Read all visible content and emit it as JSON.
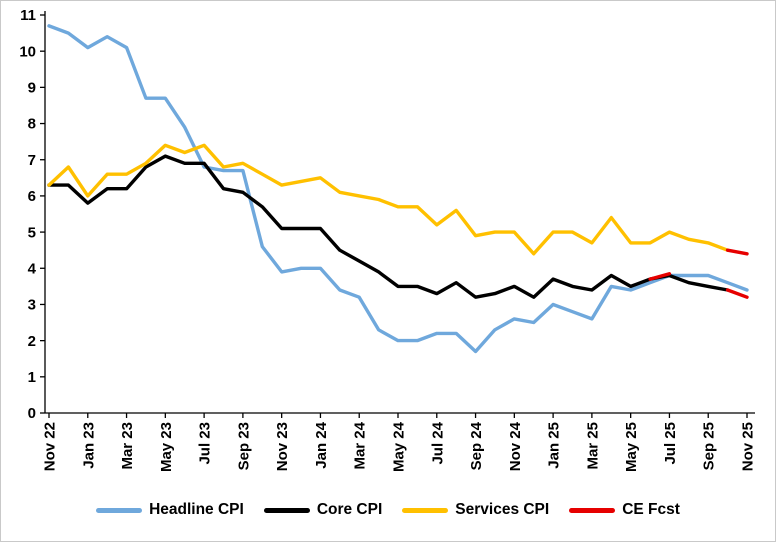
{
  "chart_data": {
    "type": "line",
    "title": "",
    "xlabel": "",
    "ylabel": "",
    "ylim": [
      0,
      11
    ],
    "grid": false,
    "legend_position": "bottom",
    "y_ticks": [
      0,
      1,
      2,
      3,
      4,
      5,
      6,
      7,
      8,
      9,
      10,
      11
    ],
    "x_tick_step": 2,
    "x_tick_labels": [
      "Nov 22",
      "Jan 23",
      "Mar 23",
      "May 23",
      "Jul 23",
      "Sep 23",
      "Nov 23",
      "Jan 24",
      "Mar 24",
      "May 24",
      "Jul 24",
      "Sep 24",
      "Nov 24",
      "Jan 25",
      "Mar 25",
      "May 25",
      "Jul 25",
      "Sep 25",
      "Nov 25"
    ],
    "x_months_monthly": [
      "Nov 22",
      "Dec 22",
      "Jan 23",
      "Feb 23",
      "Mar 23",
      "Apr 23",
      "May 23",
      "Jun 23",
      "Jul 23",
      "Aug 23",
      "Sep 23",
      "Oct 23",
      "Nov 23",
      "Dec 23",
      "Jan 24",
      "Feb 24",
      "Mar 24",
      "Apr 24",
      "May 24",
      "Jun 24",
      "Jul 24",
      "Aug 24",
      "Sep 24",
      "Oct 24",
      "Nov 24",
      "Dec 24",
      "Jan 25",
      "Feb 25",
      "Mar 25",
      "Apr 25",
      "May 25",
      "Jun 25",
      "Jul 25",
      "Aug 25",
      "Sep 25",
      "Oct 25",
      "Nov 25"
    ],
    "series": [
      {
        "name": "Headline CPI",
        "color": "#6FA8DC",
        "values": [
          10.7,
          10.5,
          10.1,
          10.4,
          10.1,
          8.7,
          8.7,
          7.9,
          6.8,
          6.7,
          6.7,
          4.6,
          3.9,
          4.0,
          4.0,
          3.4,
          3.2,
          2.3,
          2.0,
          2.0,
          2.2,
          2.2,
          1.7,
          2.3,
          2.6,
          2.5,
          3.0,
          2.8,
          2.6,
          3.5,
          3.4,
          3.6,
          3.8,
          3.8,
          3.8,
          3.6,
          3.4
        ]
      },
      {
        "name": "Core CPI",
        "color": "#000000",
        "values": [
          6.3,
          6.3,
          5.8,
          6.2,
          6.2,
          6.8,
          7.1,
          6.9,
          6.9,
          6.2,
          6.1,
          5.7,
          5.1,
          5.1,
          5.1,
          4.5,
          4.2,
          3.9,
          3.5,
          3.5,
          3.3,
          3.6,
          3.2,
          3.3,
          3.5,
          3.2,
          3.7,
          3.5,
          3.4,
          3.8,
          3.5,
          3.7,
          3.8,
          3.6,
          3.5,
          3.4,
          null
        ]
      },
      {
        "name": "Services CPI",
        "color": "#FFC000",
        "values": [
          6.3,
          6.8,
          6.0,
          6.6,
          6.6,
          6.9,
          7.4,
          7.2,
          7.4,
          6.8,
          6.9,
          6.6,
          6.3,
          6.4,
          6.5,
          6.1,
          6.0,
          5.9,
          5.7,
          5.7,
          5.2,
          5.6,
          4.9,
          5.0,
          5.0,
          4.4,
          5.0,
          5.0,
          4.7,
          5.4,
          4.7,
          4.7,
          5.0,
          4.8,
          4.7,
          4.5,
          null
        ]
      }
    ],
    "forecast": {
      "name": "CE Fcst",
      "color": "#E60000",
      "segments": [
        {
          "start_index": 31,
          "values": [
            3.7,
            3.85
          ]
        },
        {
          "start_index": 35,
          "values": [
            3.4,
            3.2
          ]
        },
        {
          "start_index": 35,
          "values": [
            4.5,
            4.4
          ]
        }
      ]
    }
  },
  "legend": {
    "items": [
      {
        "label": "Headline CPI",
        "color": "#6FA8DC"
      },
      {
        "label": "Core CPI",
        "color": "#000000"
      },
      {
        "label": "Services CPI",
        "color": "#FFC000"
      },
      {
        "label": "CE Fcst",
        "color": "#E60000"
      }
    ]
  }
}
